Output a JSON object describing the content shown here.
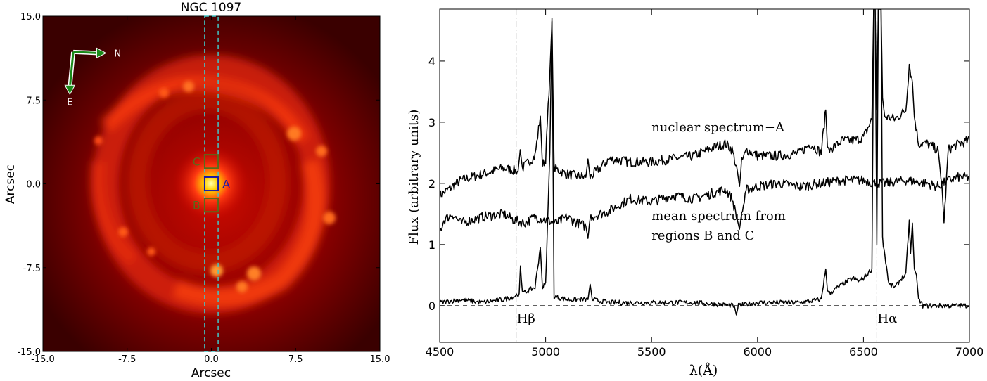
{
  "chart_data": [
    {
      "type": "heatmap",
      "title": "NGC 1097",
      "xlabel": "Arcsec",
      "ylabel": "Arcsec",
      "xlim": [
        -15,
        15
      ],
      "ylim": [
        -15,
        15
      ],
      "xticks": [
        "-15.0",
        "-7.5",
        "0.0",
        "7.5",
        "15.0"
      ],
      "yticks": [
        "-15.0",
        "-7.5",
        "0.0",
        "7.5",
        "15.0"
      ],
      "compass": {
        "north_label": "N",
        "east_label": "E",
        "color": "#1a8a1a"
      },
      "slit": {
        "x_range": [
          -0.6,
          0.6
        ],
        "color": "#40c8c8"
      },
      "regions": [
        {
          "label": "A",
          "center": [
            0.0,
            0.0
          ],
          "size": 1.2,
          "color": "#1a1aa8"
        },
        {
          "label": "B",
          "center": [
            0.0,
            -1.9
          ],
          "size": 1.2,
          "color": "#5a6a1a"
        },
        {
          "label": "C",
          "center": [
            0.0,
            2.0
          ],
          "size": 1.2,
          "color": "#5a6a1a"
        }
      ],
      "colormap": [
        "#2a0000",
        "#c00000",
        "#ff3a10",
        "#ffd000",
        "#ffffa0"
      ]
    },
    {
      "type": "line",
      "xlabel": "λ(Å)",
      "ylabel": "Flux (arbitrary units)",
      "xlim": [
        4500,
        7000
      ],
      "ylim": [
        -0.6,
        4.85
      ],
      "xticks": [
        "4500",
        "5000",
        "5500",
        "6000",
        "6500",
        "7000"
      ],
      "yticks": [
        "0",
        "1",
        "2",
        "3",
        "4"
      ],
      "reference_lines": [
        {
          "label": "Hβ",
          "x": 4861
        },
        {
          "label": "Hα",
          "x": 6563
        }
      ],
      "zero_line": {
        "y": 0,
        "style": "dashed"
      },
      "annotations": [
        {
          "text": "nuclear spectrum−A",
          "x": 5500,
          "y": 2.85
        },
        {
          "text": "mean spectrum from",
          "x": 5500,
          "y": 1.4
        },
        {
          "text": "regions B and C",
          "x": 5500,
          "y": 1.08
        }
      ],
      "series": [
        {
          "x": [
            4500,
            4600,
            4700,
            4800,
            4870,
            4880,
            4890,
            4950,
            4975,
            4985,
            5000,
            5020,
            5030,
            5040,
            5100,
            5190,
            5200,
            5210,
            5300,
            5400,
            5500,
            5600,
            5700,
            5800,
            5850,
            5880,
            5905,
            5915,
            5925,
            5950,
            6000,
            6100,
            6200,
            6250,
            6300,
            6322,
            6330,
            6340,
            6400,
            6450,
            6500,
            6540,
            6548,
            6555,
            6563,
            6570,
            6583,
            6590,
            6600,
            6650,
            6700,
            6716,
            6731,
            6740,
            6760,
            6800,
            6850,
            6870,
            6880,
            6900,
            6950,
            7000
          ],
          "y": [
            1.8,
            2.05,
            2.15,
            2.25,
            2.2,
            2.55,
            2.25,
            2.45,
            3.1,
            2.3,
            2.4,
            3.8,
            4.65,
            2.25,
            2.15,
            2.1,
            2.4,
            2.1,
            2.4,
            2.35,
            2.35,
            2.4,
            2.45,
            2.6,
            2.65,
            2.55,
            2.2,
            1.95,
            2.35,
            2.55,
            2.45,
            2.45,
            2.5,
            2.65,
            2.5,
            3.2,
            2.6,
            2.55,
            2.7,
            2.7,
            2.75,
            3.05,
            4.85,
            4.85,
            3.2,
            4.85,
            4.85,
            3.4,
            3.1,
            3.05,
            3.2,
            3.95,
            3.65,
            3.1,
            2.65,
            2.65,
            2.55,
            2.0,
            1.35,
            2.55,
            2.65,
            2.7
          ]
        },
        {
          "x": [
            4500,
            4520,
            4560,
            4600,
            4700,
            4800,
            4850,
            4900,
            4950,
            5000,
            5050,
            5100,
            5150,
            5190,
            5200,
            5210,
            5300,
            5400,
            5500,
            5600,
            5700,
            5800,
            5850,
            5880,
            5905,
            5915,
            5925,
            5950,
            6000,
            6100,
            6200,
            6300,
            6400,
            6500,
            6560,
            6563,
            6566,
            6600,
            6700,
            6800,
            6850,
            6900,
            6950,
            7000
          ],
          "y": [
            1.2,
            1.4,
            1.5,
            1.35,
            1.45,
            1.5,
            1.4,
            1.35,
            1.45,
            1.4,
            1.35,
            1.45,
            1.35,
            1.3,
            1.1,
            1.45,
            1.55,
            1.75,
            1.7,
            1.8,
            1.75,
            1.85,
            1.9,
            1.75,
            1.4,
            1.25,
            1.5,
            1.9,
            1.95,
            2.0,
            1.95,
            2.0,
            2.05,
            2.05,
            2.0,
            1.95,
            2.0,
            2.0,
            2.05,
            2.0,
            1.95,
            2.05,
            2.1,
            2.1
          ]
        },
        {
          "x": [
            4500,
            4600,
            4700,
            4800,
            4850,
            4875,
            4881,
            4890,
            4950,
            4975,
            4985,
            5000,
            5020,
            5030,
            5040,
            5100,
            5200,
            5210,
            5220,
            5300,
            5400,
            5500,
            5700,
            5890,
            5900,
            5910,
            6000,
            6100,
            6200,
            6300,
            6322,
            6330,
            6340,
            6400,
            6450,
            6480,
            6500,
            6540,
            6548,
            6555,
            6563,
            6570,
            6583,
            6590,
            6620,
            6650,
            6680,
            6700,
            6716,
            6722,
            6731,
            6740,
            6750,
            6760,
            6780,
            6800,
            6900,
            7000
          ],
          "y": [
            0.05,
            0.1,
            0.05,
            0.1,
            0.15,
            0.2,
            0.65,
            0.2,
            0.3,
            0.95,
            0.3,
            0.35,
            2.5,
            4.7,
            0.15,
            0.1,
            0.1,
            0.35,
            0.1,
            0.05,
            0.05,
            0.05,
            0.05,
            0.0,
            -0.15,
            0.0,
            0.05,
            0.05,
            0.05,
            0.1,
            0.6,
            0.25,
            0.2,
            0.35,
            0.45,
            0.4,
            0.45,
            0.6,
            4.85,
            4.85,
            1.0,
            4.85,
            4.85,
            1.1,
            0.35,
            0.3,
            0.45,
            0.5,
            1.4,
            0.85,
            1.35,
            0.6,
            0.5,
            0.1,
            0.0,
            0.0,
            0.0,
            0.0
          ]
        }
      ]
    }
  ]
}
